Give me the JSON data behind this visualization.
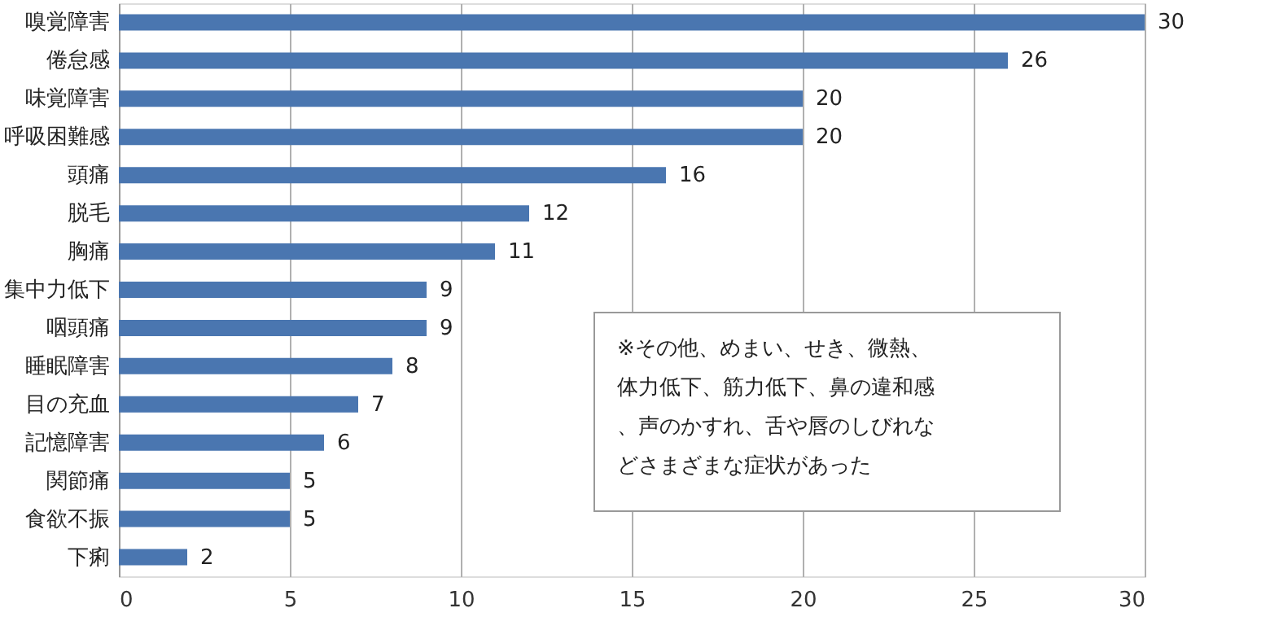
{
  "chart_data": {
    "type": "bar",
    "orientation": "horizontal",
    "categories": [
      "嗅覚障害",
      "倦怠感",
      "味覚障害",
      "呼吸困難感",
      "頭痛",
      "脱毛",
      "胸痛",
      "集中力低下",
      "咽頭痛",
      "睡眠障害",
      "目の充血",
      "記憶障害",
      "関節痛",
      "食欲不振",
      "下痢"
    ],
    "values": [
      30,
      26,
      20,
      20,
      16,
      12,
      11,
      9,
      9,
      8,
      7,
      6,
      5,
      5,
      2
    ],
    "color": "#4a76b0",
    "xlim": [
      0,
      30
    ],
    "xticks": [
      0,
      5,
      10,
      15,
      20,
      25,
      30
    ],
    "grid": "x",
    "data_labels": true,
    "annotations": [
      "※その他、めまい、せき、微熱、体力低下、筋力低下、鼻の違和感、声のかすれ、舌や唇のしびれなどさまざまな症状があった"
    ]
  }
}
